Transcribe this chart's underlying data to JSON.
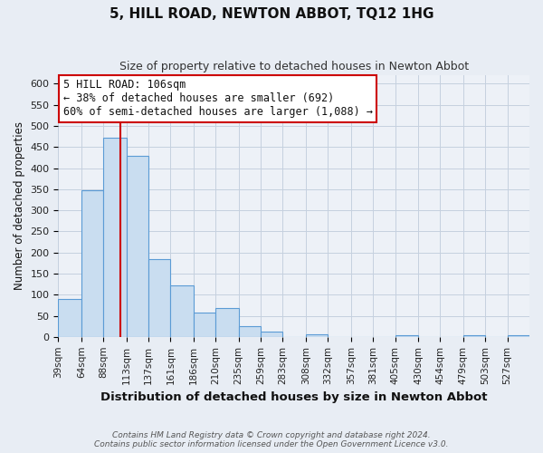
{
  "title": "5, HILL ROAD, NEWTON ABBOT, TQ12 1HG",
  "subtitle": "Size of property relative to detached houses in Newton Abbot",
  "xlabel": "Distribution of detached houses by size in Newton Abbot",
  "ylabel": "Number of detached properties",
  "bin_labels": [
    "39sqm",
    "64sqm",
    "88sqm",
    "113sqm",
    "137sqm",
    "161sqm",
    "186sqm",
    "210sqm",
    "235sqm",
    "259sqm",
    "283sqm",
    "308sqm",
    "332sqm",
    "357sqm",
    "381sqm",
    "405sqm",
    "430sqm",
    "454sqm",
    "479sqm",
    "503sqm",
    "527sqm"
  ],
  "bar_heights": [
    90,
    348,
    472,
    430,
    185,
    123,
    57,
    68,
    25,
    13,
    0,
    5,
    0,
    0,
    0,
    3,
    0,
    0,
    4,
    0,
    3
  ],
  "bar_color": "#c9ddf0",
  "bar_edge_color": "#5b9bd5",
  "property_line_x": 106,
  "bin_edges": [
    39,
    64,
    88,
    113,
    137,
    161,
    186,
    210,
    235,
    259,
    283,
    308,
    332,
    357,
    381,
    405,
    430,
    454,
    479,
    503,
    527,
    551
  ],
  "red_line_color": "#cc0000",
  "annotation_line1": "5 HILL ROAD: 106sqm",
  "annotation_line2": "← 38% of detached houses are smaller (692)",
  "annotation_line3": "60% of semi-detached houses are larger (1,088) →",
  "annotation_box_facecolor": "#ffffff",
  "annotation_box_edgecolor": "#cc0000",
  "ylim": [
    0,
    620
  ],
  "yticks": [
    0,
    50,
    100,
    150,
    200,
    250,
    300,
    350,
    400,
    450,
    500,
    550,
    600
  ],
  "footer_line1": "Contains HM Land Registry data © Crown copyright and database right 2024.",
  "footer_line2": "Contains public sector information licensed under the Open Government Licence v3.0.",
  "fig_bg_color": "#e8edf4",
  "plot_bg_color": "#edf1f7",
  "grid_color": "#c5d0df",
  "title_fontsize": 11,
  "subtitle_fontsize": 9,
  "ylabel_fontsize": 8.5,
  "xlabel_fontsize": 9.5,
  "ytick_fontsize": 8,
  "xtick_fontsize": 7.5,
  "annotation_fontsize": 8.5,
  "footer_fontsize": 6.5
}
